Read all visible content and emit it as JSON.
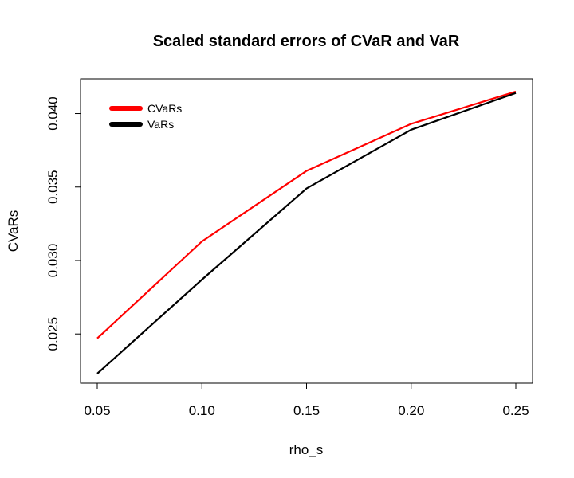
{
  "chart_data": {
    "type": "line",
    "title": "Scaled standard errors of CVaR and VaR",
    "xlabel": "rho_s",
    "ylabel": "CVaRs",
    "x": [
      0.05,
      0.1,
      0.15,
      0.2,
      0.25
    ],
    "x_tick_labels": [
      "0.05",
      "0.10",
      "0.15",
      "0.20",
      "0.25"
    ],
    "y_tick_values": [
      0.025,
      0.03,
      0.035,
      0.04
    ],
    "y_tick_labels": [
      "0.025",
      "0.030",
      "0.035",
      "0.040"
    ],
    "xlim": [
      0.042,
      0.258
    ],
    "ylim": [
      0.02165,
      0.04236
    ],
    "grid": false,
    "legend_position": "top-left",
    "series": [
      {
        "name": "CVaRs",
        "color": "#ff0000",
        "values": [
          0.0247,
          0.0313,
          0.0361,
          0.0393,
          0.0415
        ]
      },
      {
        "name": "VaRs",
        "color": "#000000",
        "values": [
          0.0223,
          0.0287,
          0.0349,
          0.0389,
          0.0414
        ]
      }
    ]
  }
}
